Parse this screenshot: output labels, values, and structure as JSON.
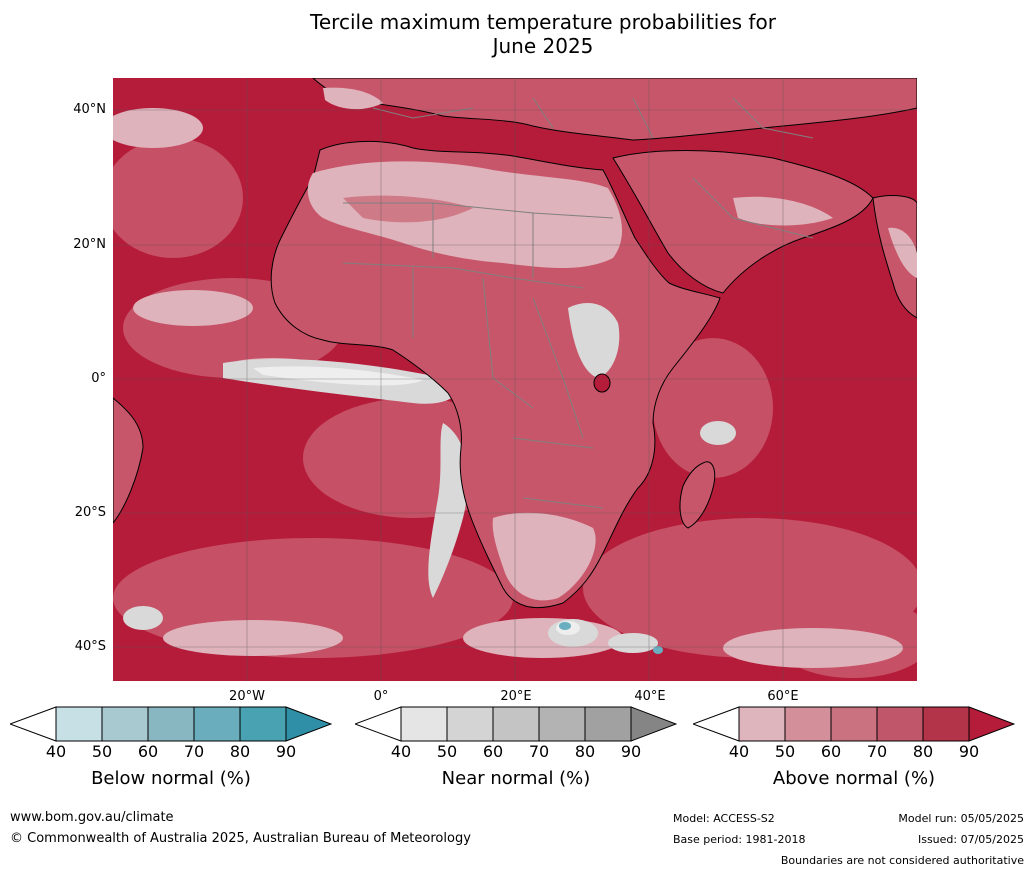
{
  "title_line1": "Tercile maximum temperature probabilities for",
  "title_line2": "June 2025",
  "map": {
    "lat_labels": [
      "40°N",
      "20°N",
      "0°",
      "20°S",
      "40°S"
    ],
    "lon_labels": [
      "20°W",
      "0°",
      "20°E",
      "40°E",
      "60°E"
    ],
    "colors": {
      "ocean_base": "#b51c3a",
      "land_base": "#c8566a",
      "pale_above": "#dfb3bb",
      "mid_above": "#cf7a87",
      "near_light": "#e4e4e4",
      "near_mid": "#c9c9c9",
      "below_light": "#c8e0e6",
      "below_mid": "#6aaebf",
      "coast": "#000000",
      "borders": "#808080",
      "gridlines": "#555555"
    }
  },
  "colorbars": [
    {
      "name": "below",
      "label": "Below normal (%)",
      "ticks": [
        "40",
        "50",
        "60",
        "70",
        "80",
        "90"
      ],
      "colors": [
        "#ffffff",
        "#c6e0e6",
        "#a8c9cf",
        "#88b7c2",
        "#6aaebd",
        "#48a2b1",
        "#2f8fa6"
      ]
    },
    {
      "name": "near",
      "label": "Near normal (%)",
      "ticks": [
        "40",
        "50",
        "60",
        "70",
        "80",
        "90"
      ],
      "colors": [
        "#ffffff",
        "#e5e5e5",
        "#d4d4d4",
        "#c4c4c4",
        "#b3b3b3",
        "#a1a1a1",
        "#858585"
      ]
    },
    {
      "name": "above",
      "label": "Above normal (%)",
      "ticks": [
        "40",
        "50",
        "60",
        "70",
        "80",
        "90"
      ],
      "colors": [
        "#ffffff",
        "#dfb5bd",
        "#d3909b",
        "#cb7280",
        "#c0566a",
        "#b33349",
        "#b51c3a"
      ]
    }
  ],
  "footer": {
    "website": "www.bom.gov.au/climate",
    "copyright": "© Commonwealth of Australia 2025, Australian Bureau of Meteorology",
    "model": "Model: ACCESS-S2",
    "base_period": "Base period: 1981-2018",
    "model_run": "Model run: 05/05/2025",
    "issued": "Issued: 07/05/2025",
    "disclaimer": "Boundaries are not considered authoritative"
  }
}
